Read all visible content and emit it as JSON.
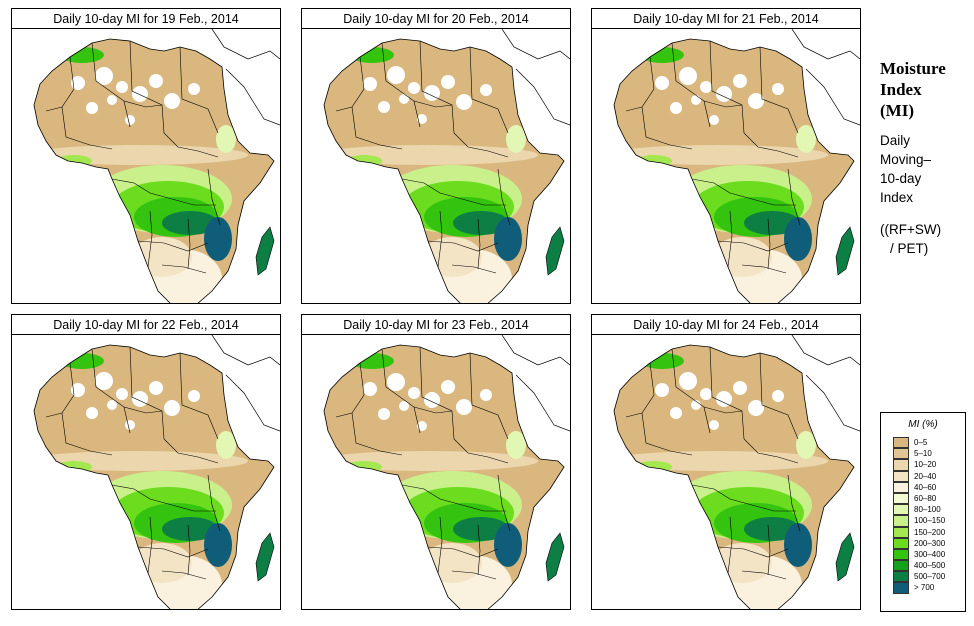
{
  "panels": [
    {
      "title": "Daily 10-day MI for  19 Feb., 2014"
    },
    {
      "title": "Daily 10-day MI for  20 Feb., 2014"
    },
    {
      "title": "Daily 10-day MI for  21 Feb., 2014"
    },
    {
      "title": "Daily 10-day MI for  22 Feb., 2014"
    },
    {
      "title": "Daily 10-day MI for  23 Feb., 2014"
    },
    {
      "title": "Daily 10-day MI for  24 Feb., 2014"
    }
  ],
  "sidebar": {
    "title_line1": "Moisture",
    "title_line2": "Index",
    "title_line3": "(MI)",
    "desc_line1": "Daily",
    "desc_line2": "Moving–",
    "desc_line3": "10-day",
    "desc_line4": "Index",
    "formula_line1": "((RF+SW)",
    "formula_line2": "/ PET)"
  },
  "legend": {
    "title": "MI (%)",
    "items": [
      {
        "label": "0–5",
        "color": "#d9b77f"
      },
      {
        "label": "5–10",
        "color": "#e3c595"
      },
      {
        "label": "10–20",
        "color": "#ecd6ad"
      },
      {
        "label": "20–40",
        "color": "#f4e4c6"
      },
      {
        "label": "40–60",
        "color": "#faf2de"
      },
      {
        "label": "60–80",
        "color": "#f4fbd4"
      },
      {
        "label": "80–100",
        "color": "#e3f7b4"
      },
      {
        "label": "100–150",
        "color": "#c9f08a"
      },
      {
        "label": "150–200",
        "color": "#a3e84e"
      },
      {
        "label": "200–300",
        "color": "#6cdc1e"
      },
      {
        "label": "300–400",
        "color": "#34c40f"
      },
      {
        "label": "400–500",
        "color": "#14a21a"
      },
      {
        "label": "500–700",
        "color": "#0e7f44"
      },
      {
        "label": "> 700",
        "color": "#0f5d78"
      }
    ]
  }
}
